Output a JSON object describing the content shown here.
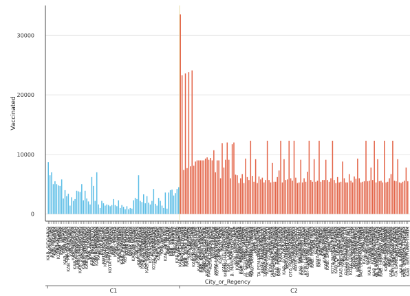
{
  "chart_data": {
    "type": "bar",
    "title": "",
    "xlabel": "City_or_Regency",
    "ylabel": "Vaccinated",
    "ylim": [
      -1200,
      35000
    ],
    "yticks": [
      0,
      10000,
      20000,
      30000
    ],
    "grid": true,
    "legend": "none",
    "colors": {
      "C1": "#5bbde6",
      "C2": "#e36448",
      "divider": "#e8dca8"
    },
    "groups": [
      {
        "name": "C1",
        "values": [
          8700,
          6500,
          7000,
          5000,
          5500,
          5000,
          4800,
          4700,
          5800,
          2600,
          4000,
          3000,
          3400,
          1400,
          2800,
          2200,
          2500,
          3900,
          3800,
          3700,
          5000,
          2300,
          3900,
          2600,
          2100,
          1600,
          6200,
          4700,
          2200,
          7000,
          1600,
          1000,
          2200,
          1800,
          1400,
          1600,
          1500,
          1300,
          1500,
          2500,
          1500,
          1300,
          2300,
          1000,
          1500,
          1200,
          800,
          1300,
          800,
          1000,
          900,
          2300,
          2700,
          2500,
          6500,
          2200,
          2000,
          3300,
          1800,
          3000,
          1900,
          1600,
          2200,
          4200,
          1700,
          1400,
          2700,
          2200,
          1400,
          1000,
          3600,
          900,
          3600,
          4000,
          4100,
          3100,
          3500,
          4200,
          4500
        ],
        "labels": [
          "KAB. SIDOARJO",
          "KAB. BLITAR",
          "KAB. PACITAN",
          "KAB. MALANG",
          "KAB. JEMBER",
          "KAB. KEDIRI",
          "KOTA MALANG",
          "KAB. TUBAN",
          "KAB. GRESIK",
          "KAB. NGAWI",
          "KAB. LAMONGAN",
          "KAB. PASURUAN",
          "KAB. PROBOLINGGO",
          "KOTA BATU",
          "KAB. MADIUN",
          "KAB. MAGETAN",
          "KAB. BOJONEGORO",
          "KAB. PONOROGO",
          "KAB. TRENGGALEK",
          "KAB. TULUNGAGUNG",
          "KAB. LUMAJANG",
          "KAB. BONDOWOSO",
          "KAB. SITUBONDO",
          "KAB. BANYUWANGI",
          "KAB. JOMBANG",
          "KAB. NGANJUK",
          "KAB. MOJOKERTO",
          "KAB. BANGKALAN",
          "KAB. SAMPANG",
          "KAB. PAMEKASAN",
          "KAB. SUMENEP",
          "KOTA KEDIRI",
          "KOTA BLITAR",
          "KOTA PASURUAN",
          "KOTA MOJOKERTO",
          "KOTA MADIUN",
          "KOTA SURABAYA",
          "KOTA PROBOLINGGO",
          "KAB. BEKASI",
          "KAB. BOGOR",
          "KAB. CIANJUR",
          "KAB. GARUT",
          "KAB. KUNINGAN",
          "KAB. SUBANG",
          "KAB. SUMEDANG",
          "KAB. KARAWANG",
          "KOTA BANDUNG",
          "KOTA DEPOK",
          "KOTA BEKASI",
          "KOTA BOGOR",
          "KOTA CIMAHI",
          "KAB. BANDUNG",
          "KAB. CIAMIS",
          "KAB. CIREBON",
          "KAB. INDRAMAYU",
          "KAB. MAJALENGKA",
          "KAB. PURWAKARTA",
          "KAB. SUKABUMI",
          "KAB. TASIKMALAYA",
          "KAB. PANGANDARAN",
          "KOTA CIREBON",
          "KOTA SUKABUMI",
          "KOTA BANJAR",
          "KOTA TASIKMALAYA",
          "KAB. BANYUMAS",
          "KAB. CILACAP",
          "KAB. KEBUMEN",
          "KAB. KLATEN",
          "KAB. KUDUS",
          "KAB. PATI",
          "KAB. REMBANG",
          "KAB. BLORA",
          "KAB. DEMAK",
          "KAB. KENDAL",
          "KAB. BATANG",
          "KAB. BREBES",
          "KAB. TEGAL",
          "KAB. PEMALANG",
          "KAB. SRAGEN"
        ]
      },
      {
        "name": "C2",
        "values": [
          33500,
          23300,
          7400,
          23600,
          7700,
          23800,
          8000,
          24100,
          8100,
          8800,
          9000,
          9000,
          9000,
          9000,
          9000,
          9300,
          9500,
          9100,
          9400,
          9000,
          10700,
          7000,
          9000,
          9000,
          6000,
          11900,
          7800,
          9100,
          12000,
          9100,
          6000,
          11700,
          12000,
          6600,
          6500,
          5200,
          6000,
          6700,
          5200,
          9300,
          6200,
          5700,
          12300,
          6400,
          5400,
          9200,
          5200,
          6300,
          5800,
          6100,
          5300,
          5700,
          12300,
          5700,
          5300,
          8600,
          5400,
          5400,
          6200,
          7300,
          12300,
          5300,
          9200,
          5700,
          5800,
          12300,
          6000,
          5600,
          12300,
          6100,
          5200,
          5300,
          9100,
          5300,
          6000,
          5400,
          7100,
          12300,
          5700,
          5400,
          9200,
          5400,
          5600,
          12300,
          5400,
          5700,
          5700,
          9100,
          5700,
          5400,
          6000,
          12300,
          5700,
          5200,
          6200,
          5300,
          5400,
          8800,
          6000,
          5300,
          5300,
          6700,
          5600,
          5300,
          6300,
          5900,
          9300,
          6000,
          5300,
          5400,
          5500,
          12300,
          5500,
          5600,
          7800,
          5700,
          12300,
          5300,
          9200,
          5500,
          5600,
          5300,
          12300,
          5300,
          5400,
          6000,
          6700,
          12300,
          5600,
          5500,
          9200,
          5300,
          5200,
          5400,
          5600,
          7800,
          5500
        ],
        "labels": [
          "KAB. ACEH BESAR",
          "KAB. ACEH JAYA",
          "KAB. ACEH UTARA",
          "KAB. ACEH TIMUR",
          "KAB. ACEH BARAT",
          "KAB. BIREUEN",
          "KAB. PIDIE",
          "KAB. PIDIE JAYA",
          "KAB. NAGAN RAYA",
          "KAB. SIMEULUE",
          "KAB. GAYO LUES",
          "KAB. ACEH TENGAH",
          "KAB. BENER MERIAH",
          "KAB. ACEH TAMIANG",
          "KAB. ACEH SINGKIL",
          "KAB. ACEH SELATAN",
          "KAB. ACEH BARAT DAYA",
          "KAB. ACEH TENGGARA",
          "KOTA BANDA ACEH",
          "KOTA SABANG",
          "KOTA LANGSA",
          "KOTA LHOKSEUMAWE",
          "KOTA SUBULUSSALAM",
          "KAB. ASAHAN",
          "KAB. BATU BARA",
          "KAB. DAIRI",
          "KAB. DELI SERDANG",
          "KAB. HUMBANG HASUNDUTAN",
          "KAB. KARO",
          "KAB. LABUHANBATU",
          "KAB. LANGKAT",
          "KAB. MANDAILING NATAL",
          "KAB. NIAS",
          "KAB. NIAS BARAT",
          "KAB. NIAS SELATAN",
          "KAB. NIAS UTARA",
          "KAB. PADANG LAWAS",
          "KAB. PAKPAK BHARAT",
          "KAB. SAMOSIR",
          "KAB. SERDANG BEDAGAI",
          "KAB. SIMALUNGUN",
          "KAB. TAPANULI SELATAN",
          "KAB. TAPANULI TENGAH",
          "KAB. TAPANULI UTARA",
          "KAB. TOBA",
          "KOTA BINJAI",
          "KOTA MEDAN",
          "KOTA PEMATANGSIANTAR",
          "KOTA SIBOLGA",
          "KOTA TANJUNGBALAI",
          "KOTA TEBING TINGGI",
          "KOTA PADANGSIDIMPUAN",
          "KOTA GUNUNGSITOLI",
          "KAB. AGAM",
          "KAB. DHARMASRAYA",
          "KAB. LIMA PULUH KOTA",
          "KAB. PADANG PARIAMAN",
          "KAB. PASAMAN",
          "KAB. PASAMAN BARAT",
          "KAB. PESISIR SELATAN",
          "KAB. SIJUNJUNG",
          "KAB. SOLOK",
          "KAB. SOLOK SELATAN",
          "KAB. TANAH DATAR",
          "KOTA BUKITTINGGI",
          "KOTA PADANG",
          "KOTA PADANG PANJANG",
          "KOTA PARIAMAN",
          "KOTA PAYAKUMBUH",
          "KOTA SAWAHLUNTO",
          "KOTA SOLOK",
          "KAB. BENGKALIS",
          "KAB. INDRAGIRI HILIR",
          "KAB. INDRAGIRI HULU",
          "KAB. KAMPAR",
          "KAB. KEPULAUAN MERANTI",
          "KAB. KUANTAN SINGINGI",
          "KAB. PELALAWAN",
          "KAB. ROKAN HILIR",
          "KAB. ROKAN HULU",
          "KAB. SIAK",
          "KOTA DUMAI",
          "KOTA PEKANBARU",
          "KAB. BATANGHARI",
          "KAB. BUNGO",
          "KAB. KERINCI",
          "KAB. MERANGIN",
          "KAB. MUARO JAMBI",
          "KAB. SAROLANGUN",
          "KAB. TEBO",
          "KOTA JAMBI",
          "KOTA SUNGAI PENUH",
          "KAB. BANYUASIN",
          "KAB. EMPAT LAWANG",
          "KAB. LAHAT",
          "KAB. MUARA ENIM",
          "KAB. MUSI BANYUASIN",
          "KAB. MUSI RAWAS",
          "KAB. OGAN ILIR",
          "KAB. OGAN KOMERING ILIR",
          "KAB. OGAN KOMERING ULU",
          "KAB. PALI",
          "KOTA LUBUKLINGGAU",
          "KOTA PAGAR ALAM",
          "KOTA PALEMBANG",
          "KOTA PRABUMULIH",
          "KAB. BENGKULU SELATAN",
          "KAB. BENGKULU TENGAH",
          "KAB. BENGKULU UTARA",
          "KAB. KAUR",
          "KAB. KEPAHIANG",
          "KAB. LEBONG",
          "KAB. MUKOMUKO",
          "KAB. REJANG LEBONG",
          "KAB. SELUMA",
          "KOTA BENGKULU",
          "KAB. LAMPUNG BARAT",
          "KAB. LAMPUNG SELATAN",
          "KAB. LAMPUNG TENGAH",
          "KAB. LAMPUNG TIMUR",
          "KAB. LAMPUNG UTARA",
          "KAB. MESUJI",
          "KAB. PESAWARAN",
          "KAB. PESISIR BARAT",
          "KAB. PRINGSEWU",
          "KAB. TANGGAMUS",
          "KAB. TULANG BAWANG",
          "KAB. TULANG BAWANG BARAT",
          "KAB. WAY KANAN",
          "KOTA BANDAR LAMPUNG",
          "KOTA METRO",
          "KAB. BANGKA",
          "KAB. BANGKA BARAT",
          "KAB. BANGKA SELATAN",
          "KAB. BANGKA TENGAH",
          "KAB. BELITUNG",
          "KAB. BELITUNG TIMUR"
        ]
      }
    ]
  }
}
